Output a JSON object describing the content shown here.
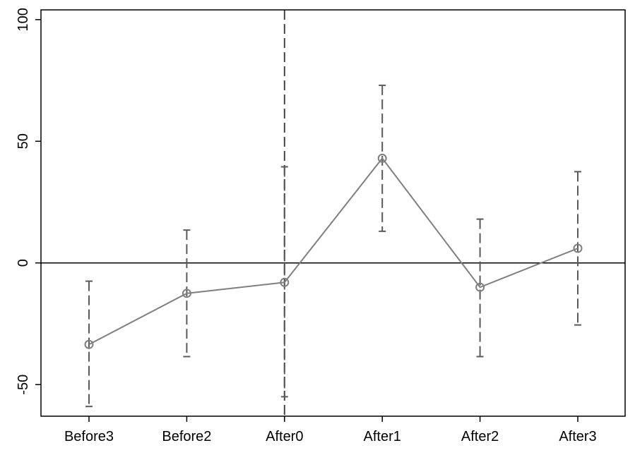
{
  "chart_data": {
    "type": "line",
    "title": "",
    "xlabel": "",
    "ylabel": "",
    "categories": [
      "Before3",
      "Before2",
      "After0",
      "After1",
      "After2",
      "After3"
    ],
    "series": [
      {
        "values": [
          -33.5,
          -12.5,
          -8,
          43,
          -10,
          6
        ],
        "ci_low": [
          -59,
          -38.5,
          -55,
          13,
          -38.5,
          -25.5
        ],
        "ci_high": [
          -7.5,
          13.5,
          39.5,
          73,
          18,
          37.5
        ]
      }
    ],
    "yticks": [
      -50,
      0,
      50,
      100
    ],
    "ylim": [
      -63,
      104
    ],
    "reference_line_y": 0,
    "reference_line_x": "After0",
    "grid": false,
    "legend": "none",
    "colors": {
      "series": "#7f7f7f",
      "ci": "#5a5a5a",
      "reference": "#000000",
      "frame": "#000000"
    }
  }
}
